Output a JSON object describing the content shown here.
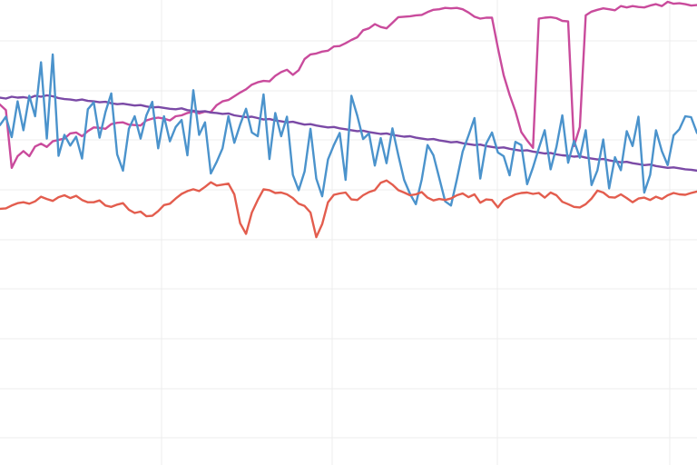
{
  "chart_data": {
    "type": "line",
    "grid": true,
    "legend": "none",
    "xlim": [
      0,
      100
    ],
    "ylim": [
      0,
      100
    ],
    "series": [
      {
        "color": "#c94b9c",
        "values": [
          77.5,
          76.3,
          63.9,
          66.4,
          67.5,
          66.4,
          68.5,
          69.1,
          68.4,
          69.6,
          69.9,
          70.2,
          71.3,
          71.5,
          70.7,
          71.8,
          72.6,
          72.5,
          72.3,
          73.3,
          73.6,
          73.7,
          73.2,
          73.1,
          73.0,
          74.1,
          74.5,
          74.7,
          74.5,
          74.1,
          75.0,
          75.2,
          75.7,
          76.0,
          75.6,
          76.0,
          75.9,
          77.4,
          78.2,
          78.5,
          79.3,
          80.1,
          80.8,
          81.8,
          82.3,
          82.6,
          82.5,
          83.7,
          84.5,
          85.0,
          83.9,
          84.9,
          87.3,
          88.3,
          88.5,
          88.9,
          89.1,
          90.0,
          90.1,
          90.7,
          91.4,
          92.0,
          93.5,
          93.9,
          94.8,
          94.2,
          93.9,
          95.1,
          96.3,
          96.4,
          96.5,
          96.7,
          96.8,
          97.4,
          97.9,
          98.0,
          98.3,
          98.2,
          98.3,
          98.0,
          97.3,
          96.4,
          96.0,
          96.2,
          96.2,
          89.7,
          83.8,
          79.6,
          76.1,
          71.6,
          69.8,
          68.2,
          96.0,
          96.2,
          96.3,
          96.1,
          95.5,
          95.4,
          68.6,
          72.7,
          96.7,
          97.5,
          97.9,
          98.2,
          98.0,
          97.8,
          98.7,
          98.4,
          98.7,
          98.5,
          98.4,
          98.8,
          99.1,
          98.7,
          99.6,
          99.2,
          99.3,
          99.1,
          98.8,
          98.9
        ]
      },
      {
        "color": "#7b4aa6",
        "values": [
          79.0,
          78.8,
          79.2,
          79.0,
          79.1,
          78.9,
          79.4,
          79.2,
          79.5,
          79.3,
          78.9,
          78.7,
          78.6,
          78.4,
          78.6,
          78.3,
          78.2,
          78.0,
          78.1,
          77.8,
          77.6,
          77.7,
          77.5,
          77.3,
          77.4,
          77.1,
          76.9,
          77.0,
          76.8,
          76.6,
          76.5,
          76.7,
          76.3,
          76.2,
          76.0,
          76.1,
          75.8,
          75.7,
          75.5,
          75.6,
          75.2,
          75.0,
          74.8,
          74.9,
          74.6,
          74.3,
          74.4,
          74.1,
          73.9,
          73.7,
          73.8,
          73.5,
          73.2,
          73.3,
          73.0,
          72.8,
          72.6,
          72.7,
          72.4,
          72.2,
          72.0,
          71.8,
          71.9,
          71.6,
          71.4,
          71.2,
          71.3,
          71.0,
          70.8,
          70.6,
          70.7,
          70.4,
          70.2,
          70.0,
          70.1,
          69.8,
          69.6,
          69.4,
          69.5,
          69.2,
          69.0,
          68.8,
          68.9,
          68.6,
          68.4,
          68.2,
          68.3,
          68.0,
          67.8,
          67.6,
          67.7,
          67.4,
          67.2,
          67.0,
          67.1,
          66.8,
          66.6,
          66.5,
          66.3,
          66.4,
          66.1,
          65.9,
          65.7,
          65.8,
          65.5,
          65.3,
          65.1,
          65.2,
          64.9,
          64.7,
          64.5,
          64.6,
          64.3,
          64.1,
          63.9,
          64.0,
          63.8,
          63.6,
          63.5,
          63.3
        ]
      },
      {
        "color": "#4b93cc",
        "values": [
          73.1,
          74.9,
          70.5,
          78.2,
          72.0,
          79.4,
          75.0,
          86.6,
          70.2,
          88.3,
          66.5,
          71.0,
          68.7,
          70.6,
          65.9,
          76.5,
          78.0,
          70.4,
          75.9,
          79.9,
          66.8,
          63.3,
          72.3,
          75.0,
          70.2,
          75.2,
          78.1,
          68.1,
          75.0,
          69.6,
          72.7,
          74.2,
          66.6,
          80.6,
          71.0,
          73.7,
          62.7,
          65.2,
          68.1,
          75.0,
          69.3,
          73.2,
          76.6,
          71.5,
          70.7,
          79.7,
          65.8,
          75.7,
          70.7,
          74.9,
          62.4,
          59.1,
          63.1,
          72.3,
          61.6,
          57.8,
          65.7,
          68.8,
          71.4,
          61.3,
          79.4,
          75.1,
          70.1,
          71.3,
          64.4,
          70.3,
          64.9,
          72.4,
          66.6,
          61.3,
          58.3,
          56.1,
          61.4,
          68.8,
          66.6,
          61.7,
          56.7,
          55.8,
          61.4,
          67.4,
          70.9,
          74.6,
          61.6,
          69.1,
          71.5,
          67.2,
          66.4,
          62.3,
          69.5,
          68.8,
          60.4,
          64.0,
          68.1,
          72.0,
          63.6,
          68.4,
          75.2,
          65.0,
          69.7,
          66.1,
          72.0,
          60.2,
          63.4,
          70.0,
          59.5,
          66.2,
          63.4,
          71.8,
          68.6,
          74.9,
          58.6,
          62.4,
          72.0,
          67.5,
          64.5,
          70.9,
          72.2,
          75.0,
          74.8,
          71.4
        ]
      },
      {
        "color": "#e35d4e",
        "values": [
          55.1,
          55.2,
          55.8,
          56.3,
          56.5,
          56.2,
          56.7,
          57.7,
          57.2,
          56.8,
          57.6,
          58.0,
          57.4,
          57.9,
          57.0,
          56.5,
          56.5,
          56.9,
          55.8,
          55.5,
          56.0,
          56.3,
          54.9,
          54.2,
          54.5,
          53.5,
          53.6,
          54.6,
          55.9,
          56.2,
          57.3,
          58.3,
          58.9,
          59.3,
          58.9,
          59.8,
          60.8,
          60.1,
          60.3,
          60.5,
          58.2,
          52.0,
          49.7,
          54.3,
          57.0,
          59.3,
          59.1,
          58.5,
          58.6,
          58.2,
          57.4,
          56.2,
          55.7,
          54.3,
          49.0,
          51.8,
          56.5,
          58.1,
          58.4,
          58.6,
          57.1,
          57.0,
          58.0,
          58.7,
          59.1,
          60.7,
          61.2,
          60.3,
          59.1,
          58.6,
          58.0,
          58.2,
          58.7,
          57.5,
          56.9,
          57.2,
          57.0,
          57.3,
          58.0,
          58.4,
          57.6,
          58.2,
          56.4,
          57.1,
          57.0,
          55.4,
          57.0,
          57.6,
          58.2,
          58.5,
          58.6,
          58.3,
          58.5,
          57.5,
          58.6,
          58.0,
          56.6,
          56.1,
          55.5,
          55.4,
          56.1,
          57.3,
          59.0,
          58.6,
          57.6,
          57.5,
          58.2,
          57.4,
          56.5,
          57.3,
          57.5,
          57.0,
          57.7,
          57.2,
          58.0,
          58.5,
          58.2,
          58.1,
          58.5,
          58.8
        ]
      }
    ]
  }
}
